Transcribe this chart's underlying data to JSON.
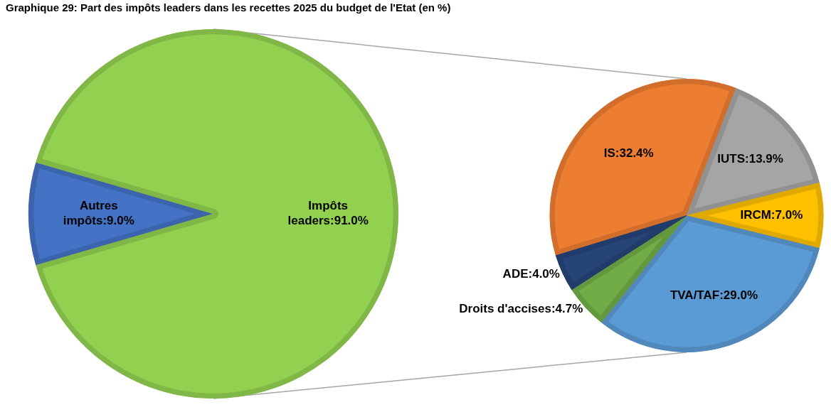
{
  "chart_data": [
    {
      "type": "pie",
      "title": "Graphique 29: Part des impôts leaders dans les recettes 2025 du budget de l'Etat (en %)",
      "categories": [
        "Autres impôts",
        "Impôts leaders"
      ],
      "values": [
        9.0,
        91.0
      ],
      "colors": [
        "#4472c4",
        "#92d050"
      ],
      "value_labels": [
        "9.0%",
        "91.0%"
      ]
    },
    {
      "type": "pie",
      "categories": [
        "IS",
        "IUTS",
        "IRCM",
        "TVA/TAF",
        "Droits d'accises",
        "ADE"
      ],
      "values": [
        32.4,
        13.9,
        7.0,
        29.0,
        4.7,
        4.0
      ],
      "colors": [
        "#ed7d31",
        "#a5a5a5",
        "#ffc000",
        "#5b9bd5",
        "#70ad47",
        "#264478"
      ],
      "value_labels": [
        "32.4%",
        "13.9%",
        "7.0%",
        "29.0%",
        "4.7%",
        "4.0%"
      ]
    }
  ]
}
